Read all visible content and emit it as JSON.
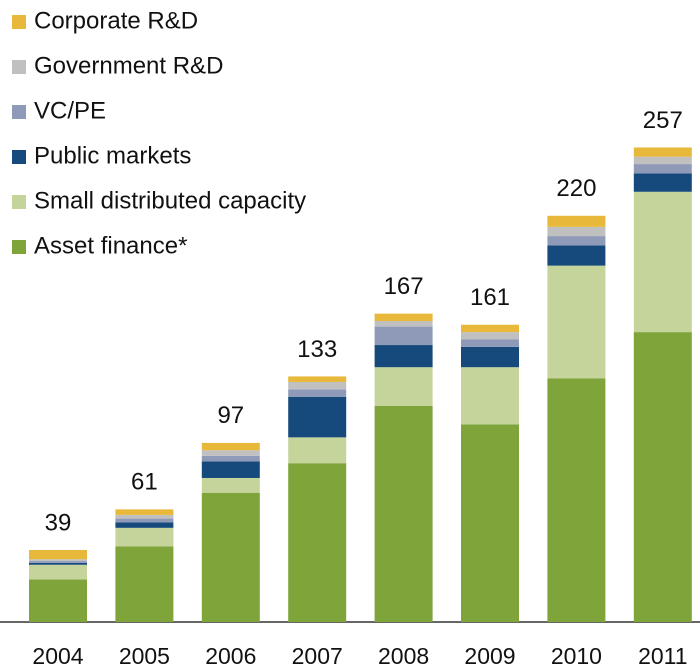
{
  "chart_data": {
    "type": "stacked_bar",
    "categories": [
      "2004",
      "2005",
      "2006",
      "2007",
      "2008",
      "2009",
      "2010",
      "2011"
    ],
    "series": [
      {
        "name": "Asset finance*",
        "color": "#7ea43a",
        "values": [
          23,
          41,
          70,
          86,
          117,
          107,
          132,
          157
        ]
      },
      {
        "name": "Small distributed capacity",
        "color": "#c4d49a",
        "values": [
          8,
          10,
          8,
          14,
          21,
          31,
          61,
          76
        ]
      },
      {
        "name": "Public markets",
        "color": "#174a7c",
        "values": [
          1,
          3,
          9,
          22,
          12,
          11,
          11,
          10
        ]
      },
      {
        "name": "VC/PE",
        "color": "#8e9ab8",
        "values": [
          1,
          2,
          3,
          4,
          10,
          4,
          5,
          5
        ]
      },
      {
        "name": "Government R&D",
        "color": "#c0c0c0",
        "values": [
          1,
          2,
          3,
          4,
          3,
          4,
          5,
          4
        ]
      },
      {
        "name": "Corporate R&D",
        "color": "#e8b83a",
        "values": [
          5,
          3,
          4,
          3,
          4,
          4,
          6,
          5
        ]
      }
    ],
    "totals": [
      39,
      61,
      97,
      133,
      167,
      161,
      220,
      257
    ],
    "ylim": [
      0,
      280
    ]
  }
}
